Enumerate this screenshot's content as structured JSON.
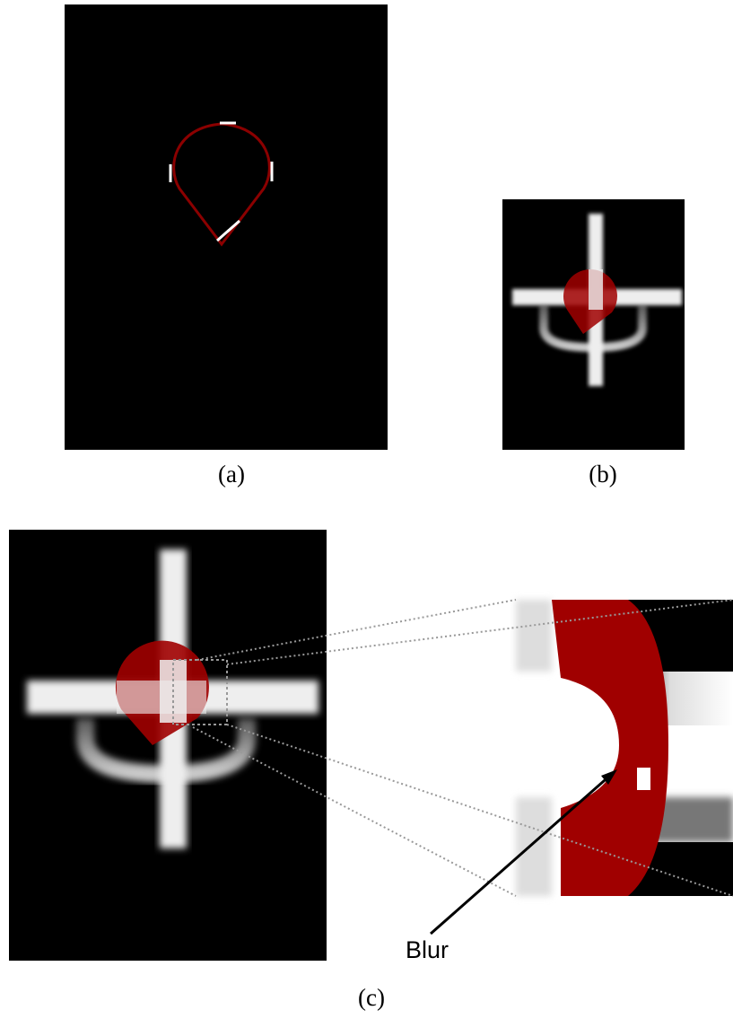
{
  "figure": {
    "panels": [
      {
        "label": "(a)"
      },
      {
        "label": "(b)"
      },
      {
        "label": "(c)"
      }
    ],
    "annotation": "Blur"
  }
}
